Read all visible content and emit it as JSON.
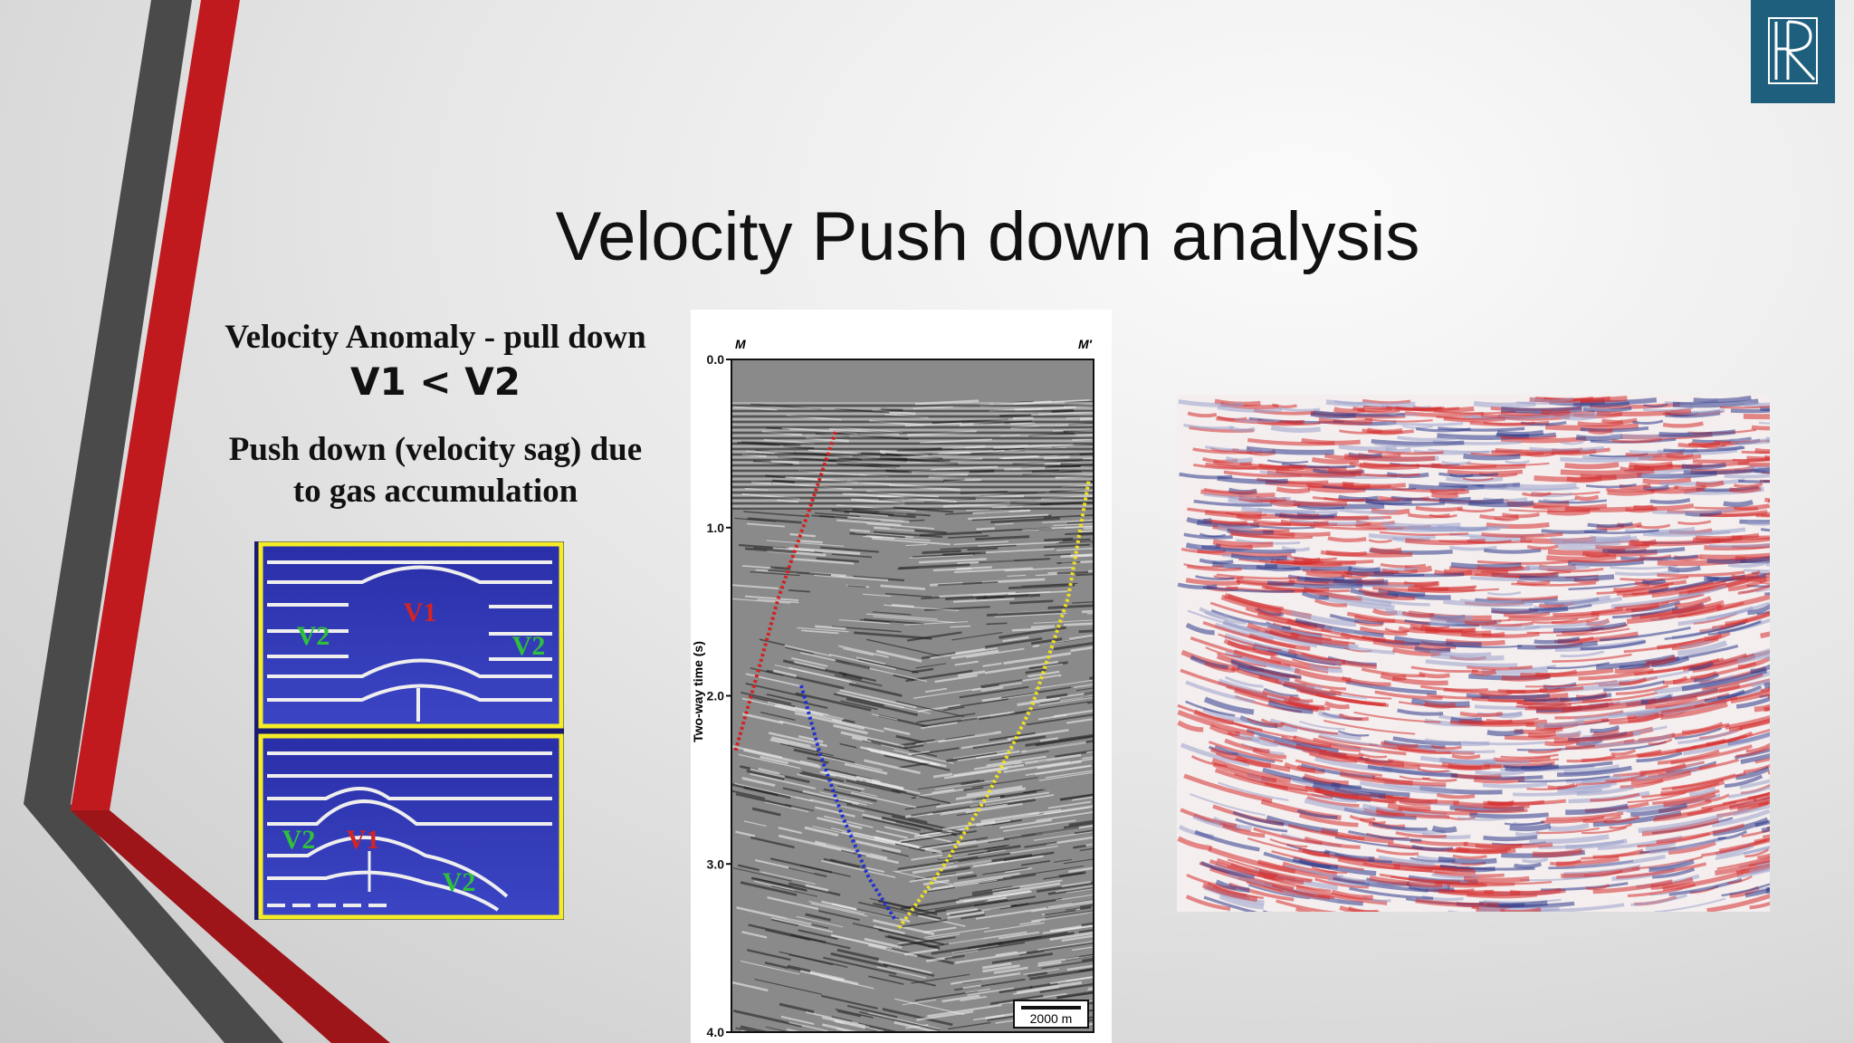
{
  "title": "Velocity Push down analysis",
  "left_text": {
    "heading": "Velocity Anomaly - pull down",
    "relation": "V1 < V2",
    "description": [
      "Push down (velocity sag) due",
      "to gas accumulation"
    ]
  },
  "diagram": {
    "top_panel": {
      "labels": [
        "V2",
        "V1",
        "V2"
      ]
    },
    "bottom_panel": {
      "labels": [
        "V2",
        "V1",
        "V2"
      ]
    }
  },
  "seismic_section": {
    "left_marker": "M",
    "right_marker": "M'",
    "y_axis_label": "Two-way time (s)",
    "y_ticks": [
      "0.0",
      "1.0",
      "2.0",
      "3.0",
      "4.0"
    ],
    "scale_bar": "2000 m"
  }
}
